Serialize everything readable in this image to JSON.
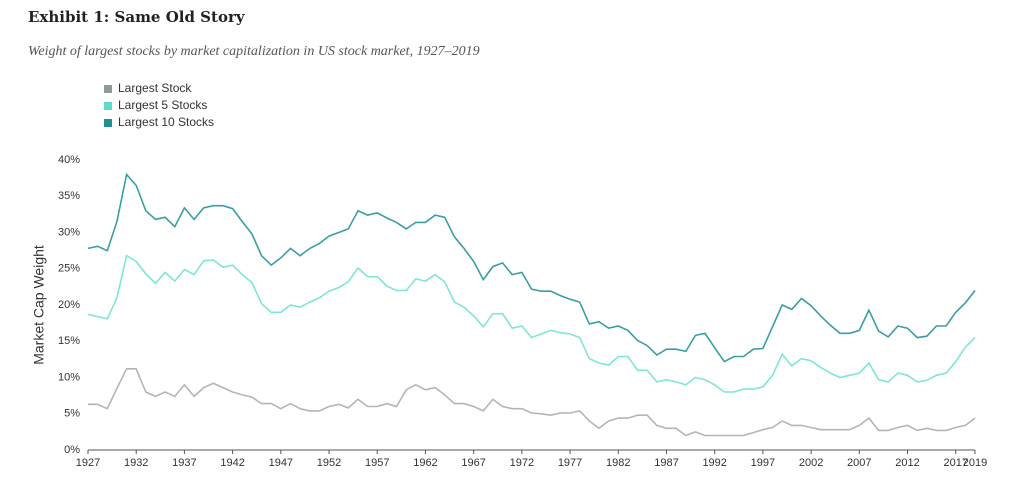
{
  "chart_data": {
    "type": "line",
    "title": "Exhibit 1: Same Old Story",
    "subtitle": "Weight of largest stocks by market capitalization in US stock market, 1927–2019",
    "y_label": "Market Cap Weight",
    "x": [
      1927,
      1928,
      1929,
      1930,
      1931,
      1932,
      1933,
      1934,
      1935,
      1936,
      1937,
      1938,
      1939,
      1940,
      1941,
      1942,
      1943,
      1944,
      1945,
      1946,
      1947,
      1948,
      1949,
      1950,
      1951,
      1952,
      1953,
      1954,
      1955,
      1956,
      1957,
      1958,
      1959,
      1960,
      1961,
      1962,
      1963,
      1964,
      1965,
      1966,
      1967,
      1968,
      1969,
      1970,
      1971,
      1972,
      1973,
      1974,
      1975,
      1976,
      1977,
      1978,
      1979,
      1980,
      1981,
      1982,
      1983,
      1984,
      1985,
      1986,
      1987,
      1988,
      1989,
      1990,
      1991,
      1992,
      1993,
      1994,
      1995,
      1996,
      1997,
      1998,
      1999,
      2000,
      2001,
      2002,
      2003,
      2004,
      2005,
      2006,
      2007,
      2008,
      2009,
      2010,
      2011,
      2012,
      2013,
      2014,
      2015,
      2016,
      2017,
      2018,
      2019
    ],
    "series": [
      {
        "name": "Largest Stock",
        "color": "#b4b6b4",
        "legend_color": "#8c9c92",
        "values": [
          6.3,
          6.3,
          5.7,
          8.5,
          11.2,
          11.2,
          8,
          7.4,
          8,
          7.4,
          9,
          7.4,
          8.6,
          9.2,
          8.6,
          8,
          7.6,
          7.3,
          6.4,
          6.4,
          5.7,
          6.4,
          5.7,
          5.4,
          5.4,
          6,
          6.3,
          5.8,
          7,
          6,
          6,
          6.4,
          6,
          8.3,
          9,
          8.3,
          8.6,
          7.6,
          6.4,
          6.4,
          6,
          5.4,
          7,
          6,
          5.7,
          5.7,
          5.1,
          5,
          4.8,
          5.1,
          5.1,
          5.4,
          4,
          3,
          4,
          4.4,
          4.4,
          4.8,
          4.8,
          3.4,
          3,
          3,
          2,
          2.5,
          2,
          2,
          2,
          2,
          2,
          2.4,
          2.8,
          3.1,
          4,
          3.4,
          3.4,
          3.1,
          2.8,
          2.8,
          2.8,
          2.8,
          3.4,
          4.4,
          2.7,
          2.7,
          3.1,
          3.4,
          2.7,
          3,
          2.7,
          2.7,
          3.1,
          3.4,
          4.4
        ]
      },
      {
        "name": "Largest 5 Stocks",
        "color": "#7fe6d5",
        "legend_color": "#5fd9c8",
        "values": [
          18.7,
          18.4,
          18.1,
          21,
          26.8,
          26,
          24.3,
          23,
          24.5,
          23.3,
          24.9,
          24.2,
          26.1,
          26.2,
          25.2,
          25.5,
          24.2,
          23.1,
          20.2,
          19,
          19,
          20,
          19.7,
          20.4,
          21,
          21.9,
          22.4,
          23.2,
          25.1,
          23.9,
          23.9,
          22.6,
          22,
          22,
          23.6,
          23.3,
          24.2,
          23.2,
          20.4,
          19.7,
          18.5,
          17,
          18.8,
          18.8,
          16.8,
          17.1,
          15.5,
          16,
          16.5,
          16.2,
          16,
          15.5,
          12.6,
          12,
          11.7,
          12.9,
          12.9,
          11,
          11,
          9.4,
          9.7,
          9.4,
          9,
          10,
          9.7,
          9,
          8,
          8,
          8.4,
          8.4,
          8.7,
          10.3,
          13.2,
          11.6,
          12.6,
          12.3,
          11.4,
          10.6,
          10,
          10.3,
          10.6,
          12,
          9.7,
          9.4,
          10.6,
          10.3,
          9.4,
          9.6,
          10.3,
          10.6,
          12.2,
          14.2,
          15.5
        ]
      },
      {
        "name": "Largest 10 Stocks",
        "color": "#3a9ea5",
        "legend_color": "#1f8f95",
        "values": [
          27.8,
          28.1,
          27.5,
          31.5,
          38,
          36.5,
          33,
          31.8,
          32.1,
          30.8,
          33.4,
          31.8,
          33.4,
          33.7,
          33.7,
          33.3,
          31.5,
          29.8,
          26.8,
          25.5,
          26.5,
          27.8,
          26.8,
          27.8,
          28.5,
          29.5,
          30,
          30.5,
          33,
          32.4,
          32.7,
          32,
          31.4,
          30.5,
          31.4,
          31.4,
          32.4,
          32.1,
          29.4,
          27.8,
          26,
          23.5,
          25.3,
          25.8,
          24.2,
          24.5,
          22.2,
          21.9,
          21.9,
          21.3,
          20.8,
          20.4,
          17.4,
          17.7,
          16.8,
          17.1,
          16.5,
          15.1,
          14.4,
          13.1,
          13.9,
          13.9,
          13.6,
          15.8,
          16.1,
          14.1,
          12.2,
          12.9,
          12.9,
          13.9,
          14,
          17,
          20,
          19.4,
          20.9,
          19.9,
          18.5,
          17.2,
          16.1,
          16.1,
          16.5,
          19.3,
          16.4,
          15.6,
          17.1,
          16.8,
          15.5,
          15.7,
          17.1,
          17.1,
          19,
          20.3,
          22
        ]
      }
    ],
    "xlim": [
      1927,
      2019
    ],
    "xticks": [
      1927,
      1932,
      1937,
      1942,
      1947,
      1952,
      1957,
      1962,
      1967,
      1972,
      1977,
      1982,
      1987,
      1992,
      1997,
      2002,
      2007,
      2012,
      2017,
      2019
    ],
    "ylim": [
      0,
      40
    ],
    "yticks": [
      {
        "value": 0,
        "label": "0%"
      },
      {
        "value": 5,
        "label": "5%"
      },
      {
        "value": 10,
        "label": "10%"
      },
      {
        "value": 15,
        "label": "15%"
      },
      {
        "value": 20,
        "label": "20%"
      },
      {
        "value": 25,
        "label": "25%"
      },
      {
        "value": 30,
        "label": "30%"
      },
      {
        "value": 35,
        "label": "35%"
      },
      {
        "value": 40,
        "label": "40%"
      }
    ]
  }
}
